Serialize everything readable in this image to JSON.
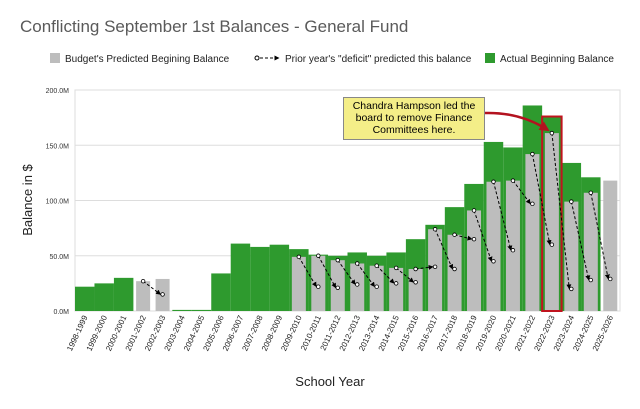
{
  "chart_data": {
    "type": "bar",
    "title": "Conflicting September 1st Balances - General Fund",
    "x_label": "School Year",
    "y_label": "Balance in $",
    "categories": [
      "1998-1999",
      "1999-2000",
      "2000-2001",
      "2001-2002",
      "2002-2003",
      "2003-2004",
      "2004-2005",
      "2005-2006",
      "2006-2007",
      "2007-2008",
      "2008-2009",
      "2009-2010",
      "2010-2011",
      "2011-2012",
      "2012-2013",
      "2013-2014",
      "2014-2015",
      "2015-2016",
      "2016-2017",
      "2017-2018",
      "2018-2019",
      "2019-2020",
      "2020-2021",
      "2021-2022",
      "2022-2023",
      "2023-2024",
      "2024-2025",
      "2025-2026"
    ],
    "series": [
      {
        "name": "Budget's Predicted Begining Balance",
        "color": "#bdbdbd",
        "values": [
          null,
          null,
          null,
          27,
          29,
          null,
          null,
          null,
          null,
          null,
          null,
          49,
          50,
          46,
          43,
          41,
          39,
          38,
          74,
          69,
          91,
          117,
          118,
          142,
          161,
          99,
          107,
          118
        ]
      },
      {
        "name": "Prior year's \"deficit\" predicted this balance",
        "color": "#000000",
        "values": [
          null,
          null,
          null,
          null,
          15,
          null,
          null,
          null,
          null,
          null,
          null,
          null,
          22,
          21,
          24,
          22,
          25,
          26,
          40,
          38,
          65,
          45,
          55,
          97,
          60,
          20,
          28,
          29
        ]
      },
      {
        "name": "Actual Beginning Balance",
        "color": "#2e9a2e",
        "values": [
          22,
          25,
          30,
          null,
          null,
          1,
          1,
          34,
          61,
          58,
          60,
          56,
          51,
          50,
          53,
          50,
          53,
          65,
          78,
          94,
          115,
          153,
          148,
          186,
          176,
          134,
          121,
          null
        ]
      }
    ],
    "ylim": [
      0,
      200
    ],
    "yticks": [
      {
        "value": 0,
        "label": "0.0M"
      },
      {
        "value": 50,
        "label": "50.0M"
      },
      {
        "value": 100,
        "label": "100.0M"
      },
      {
        "value": 150,
        "label": "150.0M"
      },
      {
        "value": 200,
        "label": "200.0M"
      }
    ],
    "grid": true,
    "highlight": "2022-2023",
    "annotation": {
      "text": "Chandra Hampson led the board to remove Finance Committees here."
    }
  }
}
